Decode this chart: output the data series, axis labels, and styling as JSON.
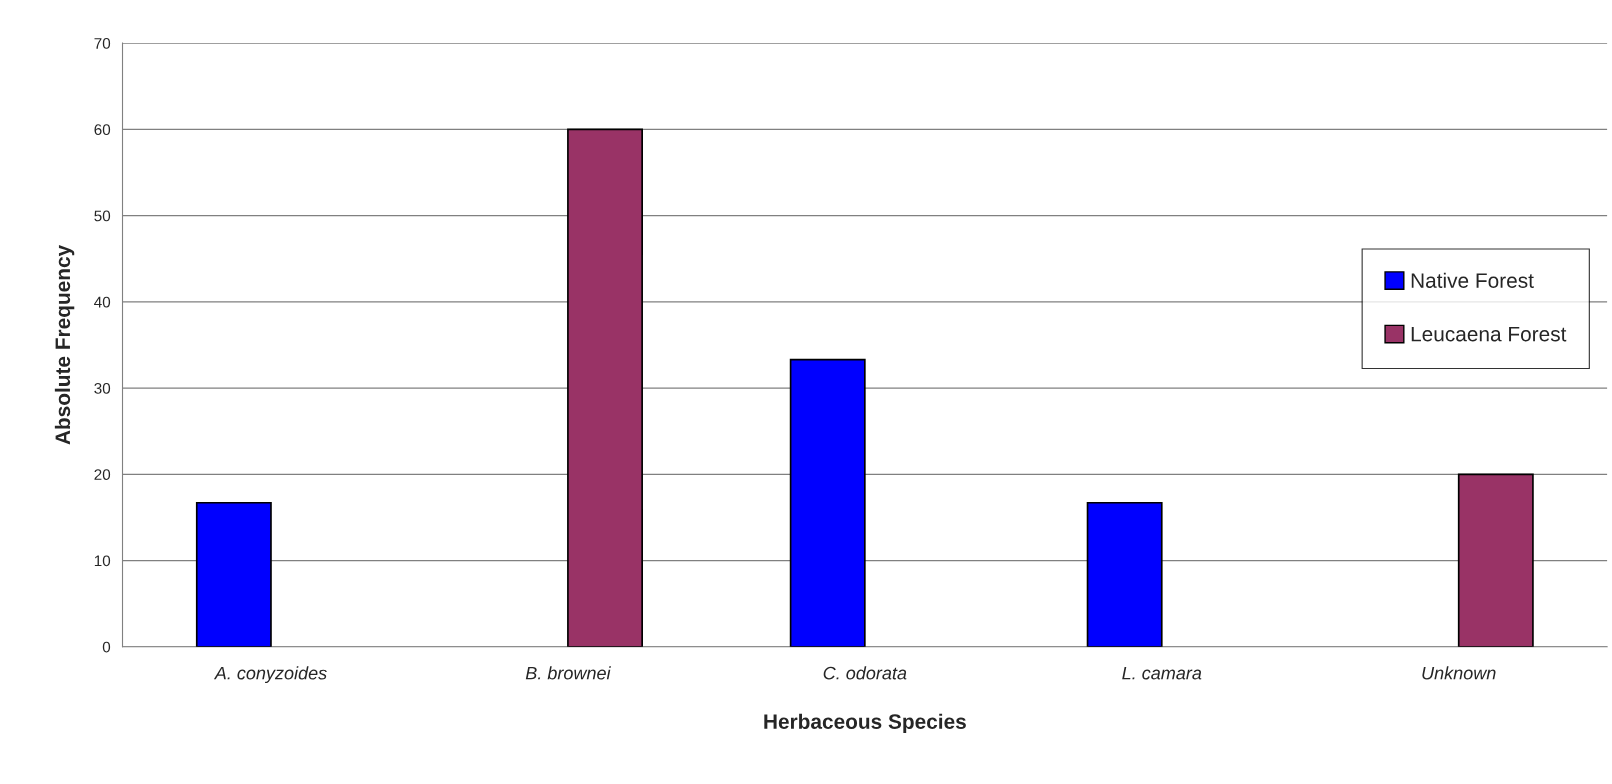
{
  "chart_data": {
    "type": "bar",
    "xlabel": "Herbaceous Species",
    "ylabel": "Absolute Frequency",
    "categories": [
      "A. conyzoides",
      "B. brownei",
      "C. odorata",
      "L. camara",
      "Unknown"
    ],
    "series": [
      {
        "name": "Native Forest",
        "color": "#0000ff",
        "values": [
          16.7,
          null,
          33.3,
          16.7,
          null
        ]
      },
      {
        "name": "Leucaena Forest",
        "color": "#993366",
        "values": [
          null,
          60,
          null,
          null,
          20
        ]
      }
    ],
    "ylim": [
      0,
      70
    ],
    "yticks": [
      0,
      10,
      20,
      30,
      40,
      50,
      60,
      70
    ],
    "grid": "y",
    "legend": "right"
  }
}
